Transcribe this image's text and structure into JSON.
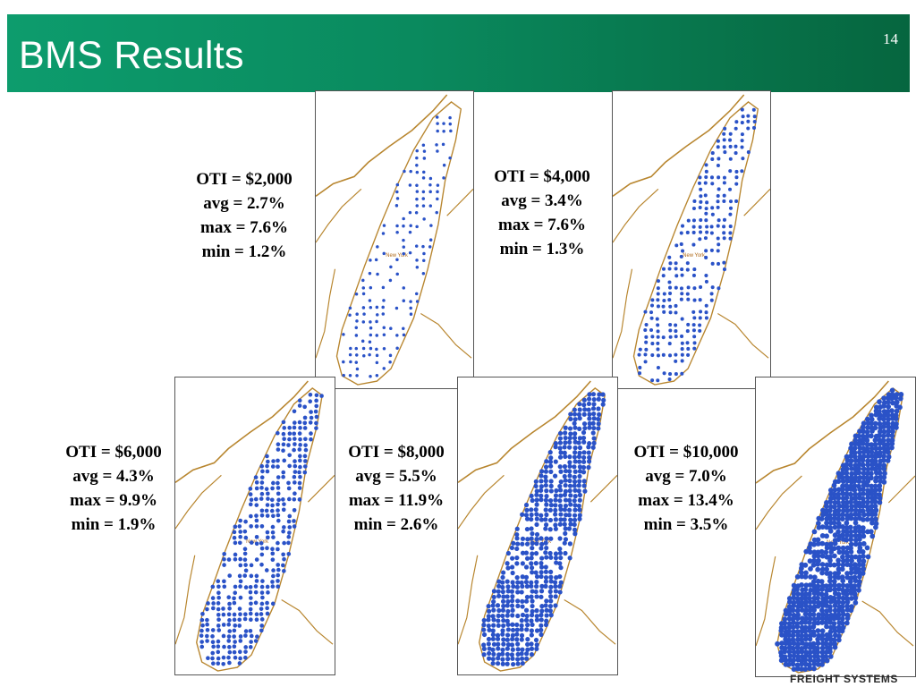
{
  "slide": {
    "title": "BMS Results",
    "page_number": "14"
  },
  "map": {
    "city_label": "New York"
  },
  "scenarios": [
    {
      "oti": "OTI = $2,000",
      "avg": "avg = 2.7%",
      "max": "max = 7.6%",
      "min": "min = 1.2%",
      "density": 1
    },
    {
      "oti": "OTI = $4,000",
      "avg": "avg = 3.4%",
      "max": "max = 7.6%",
      "min": "min = 1.3%",
      "density": 2
    },
    {
      "oti": "OTI = $6,000",
      "avg": "avg = 4.3%",
      "max": "max = 9.9%",
      "min": "min = 1.9%",
      "density": 3
    },
    {
      "oti": "OTI = $8,000",
      "avg": "avg = 5.5%",
      "max": "max = 11.9%",
      "min": "min = 2.6%",
      "density": 4
    },
    {
      "oti": "OTI = $10,000",
      "avg": "avg = 7.0%",
      "max": "max = 13.4%",
      "min": "min = 3.5%",
      "density": 5
    }
  ],
  "footer": {
    "brand": "FREIGHT SYSTEMS"
  },
  "colors": {
    "header_start": "#0d9c6d",
    "header_end": "#06663f",
    "dot": "#2a52c7",
    "river": "#b8862f",
    "pier": "#c47a1a"
  }
}
